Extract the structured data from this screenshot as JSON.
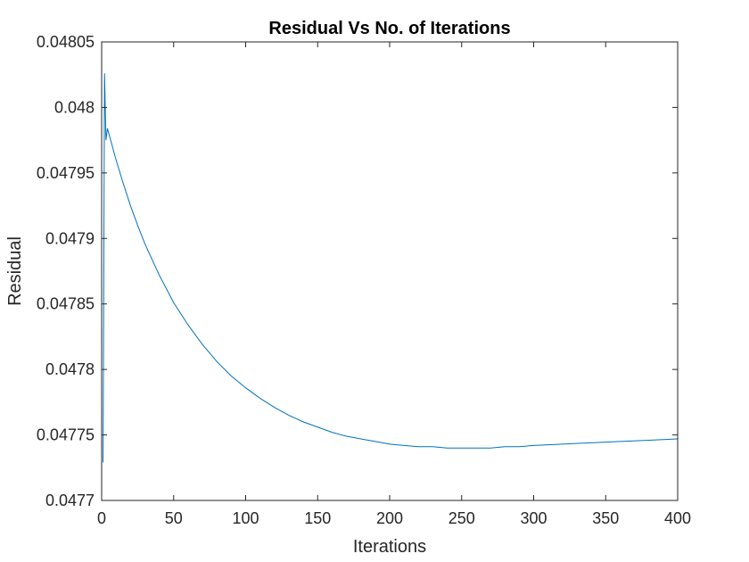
{
  "chart_data": {
    "type": "line",
    "title": "Residual Vs No. of Iterations",
    "xlabel": "Iterations",
    "ylabel": "Residual",
    "xlim": [
      0,
      400
    ],
    "ylim": [
      0.0477,
      0.04805
    ],
    "xticks": [
      0,
      50,
      100,
      150,
      200,
      250,
      300,
      350,
      400
    ],
    "xtick_labels": [
      "0",
      "50",
      "100",
      "150",
      "200",
      "250",
      "300",
      "350",
      "400"
    ],
    "yticks": [
      0.0477,
      0.04775,
      0.0478,
      0.04785,
      0.0479,
      0.04795,
      0.048,
      0.04805
    ],
    "ytick_labels": [
      "0.0477",
      "0.04775",
      "0.0478",
      "0.04785",
      "0.0479",
      "0.04795",
      "0.048",
      "0.04805"
    ],
    "grid": false,
    "line_color": "#0072BD",
    "series": [
      {
        "x": [
          1,
          2,
          3,
          4,
          5,
          7,
          10,
          15,
          20,
          25,
          30,
          40,
          50,
          60,
          70,
          80,
          90,
          100,
          110,
          120,
          130,
          140,
          150,
          160,
          170,
          180,
          190,
          200,
          210,
          220,
          230,
          240,
          250,
          260,
          270,
          280,
          290,
          300,
          320,
          340,
          360,
          380,
          400
        ],
        "y": [
          0.047729,
          0.048026,
          0.047975,
          0.047984,
          0.04798,
          0.047972,
          0.04796,
          0.047942,
          0.047925,
          0.04791,
          0.047896,
          0.047872,
          0.047851,
          0.047834,
          0.047819,
          0.047806,
          0.047795,
          0.047786,
          0.047778,
          0.047771,
          0.047765,
          0.04776,
          0.047756,
          0.047752,
          0.047749,
          0.047747,
          0.047745,
          0.047743,
          0.047742,
          0.047741,
          0.047741,
          0.04774,
          0.04774,
          0.04774,
          0.04774,
          0.047741,
          0.047741,
          0.047742,
          0.047743,
          0.047744,
          0.047745,
          0.047746,
          0.047747
        ]
      }
    ]
  }
}
